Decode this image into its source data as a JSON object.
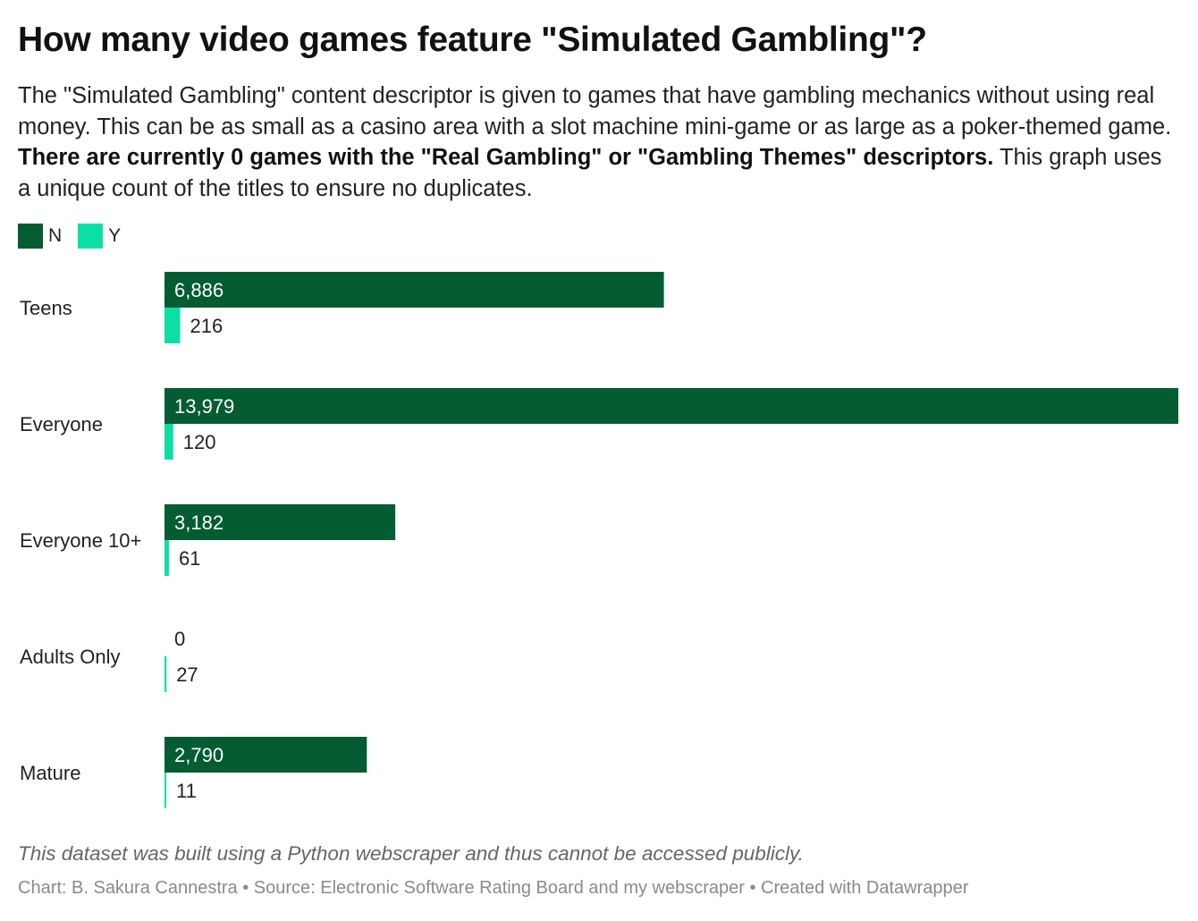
{
  "header": {
    "title": "How many video games feature \"Simulated Gambling\"?",
    "subtitle_part1": "The \"Simulated Gambling\" content descriptor is given to games that have gambling mechanics without using real money. This can be as small as a casino area with a slot machine mini-game or as large as a poker-themed game. ",
    "subtitle_bold": "There are currently 0 games with the \"Real Gambling\" or \"Gambling Themes\" descriptors.",
    "subtitle_part2": " This graph uses a unique count of the titles to ensure no duplicates."
  },
  "footer": {
    "note": "This dataset was built using a Python webscraper and thus cannot be accessed publicly.",
    "credits": "Chart: B. Sakura Cannestra • Source: Electronic Software Rating Board and my webscraper • Created with Datawrapper"
  },
  "chart_data": {
    "type": "bar",
    "orientation": "horizontal",
    "categories": [
      "Teens",
      "Everyone",
      "Everyone 10+",
      "Adults Only",
      "Mature"
    ],
    "series": [
      {
        "name": "N",
        "color": "#035c32",
        "values": [
          6886,
          13979,
          3182,
          0,
          2790
        ],
        "labels": [
          "6,886",
          "13,979",
          "3,182",
          "0",
          "2,790"
        ]
      },
      {
        "name": "Y",
        "color": "#0ddfa4",
        "values": [
          216,
          120,
          61,
          27,
          11
        ],
        "labels": [
          "216",
          "120",
          "61",
          "27",
          "11"
        ]
      }
    ],
    "legend_position": "top-left",
    "xlim": [
      0,
      13979
    ],
    "grid": false
  }
}
